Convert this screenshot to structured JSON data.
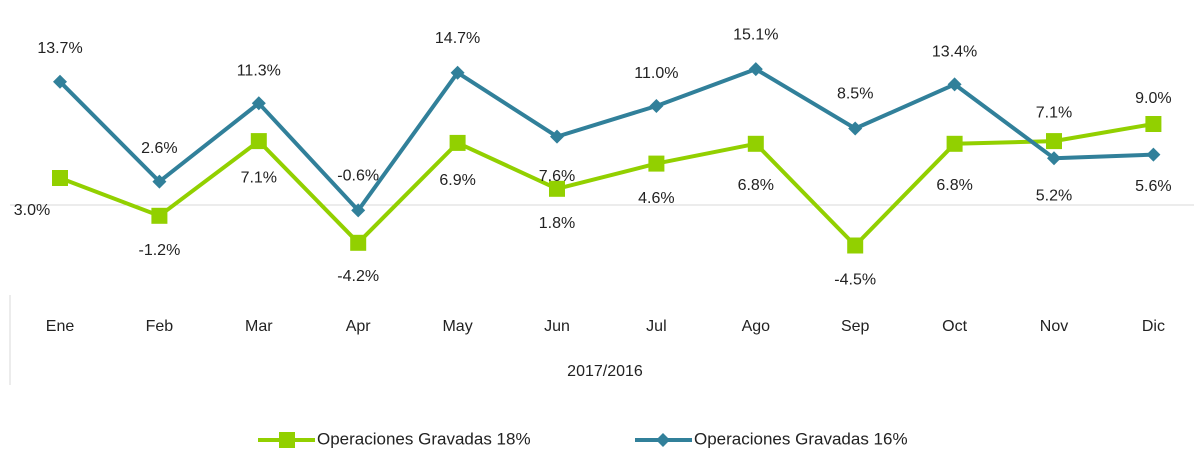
{
  "chart_data": {
    "type": "line",
    "categories": [
      "Ene",
      "Feb",
      "Mar",
      "Apr",
      "May",
      "Jun",
      "Jul",
      "Ago",
      "Sep",
      "Oct",
      "Nov",
      "Dic"
    ],
    "x_label": "2017/2016",
    "ylim": [
      -10,
      20
    ],
    "series": [
      {
        "name": "Operaciones Gravadas 18%",
        "color": "#92d000",
        "marker": "square",
        "values": [
          3.0,
          -1.2,
          7.1,
          -4.2,
          6.9,
          1.8,
          4.6,
          6.8,
          -4.5,
          6.8,
          7.1,
          9.0
        ],
        "value_labels": [
          "3.0%",
          "-1.2%",
          "7.1%",
          "-4.2%",
          "6.9%",
          "1.8%",
          "4.6%",
          "6.8%",
          "-4.5%",
          "6.8%",
          "7.1%",
          "9.0%"
        ]
      },
      {
        "name": "Operaciones Gravadas 16%",
        "color": "#31809a",
        "marker": "diamond",
        "values": [
          13.7,
          2.6,
          11.3,
          -0.6,
          14.7,
          7.6,
          11.0,
          15.1,
          8.5,
          13.4,
          5.2,
          5.6
        ],
        "value_labels": [
          "13.7%",
          "2.6%",
          "11.3%",
          "-0.6%",
          "14.7%",
          "7.6%",
          "11.0%",
          "15.1%",
          "8.5%",
          "13.4%",
          "5.2%",
          "5.6%"
        ]
      }
    ]
  }
}
